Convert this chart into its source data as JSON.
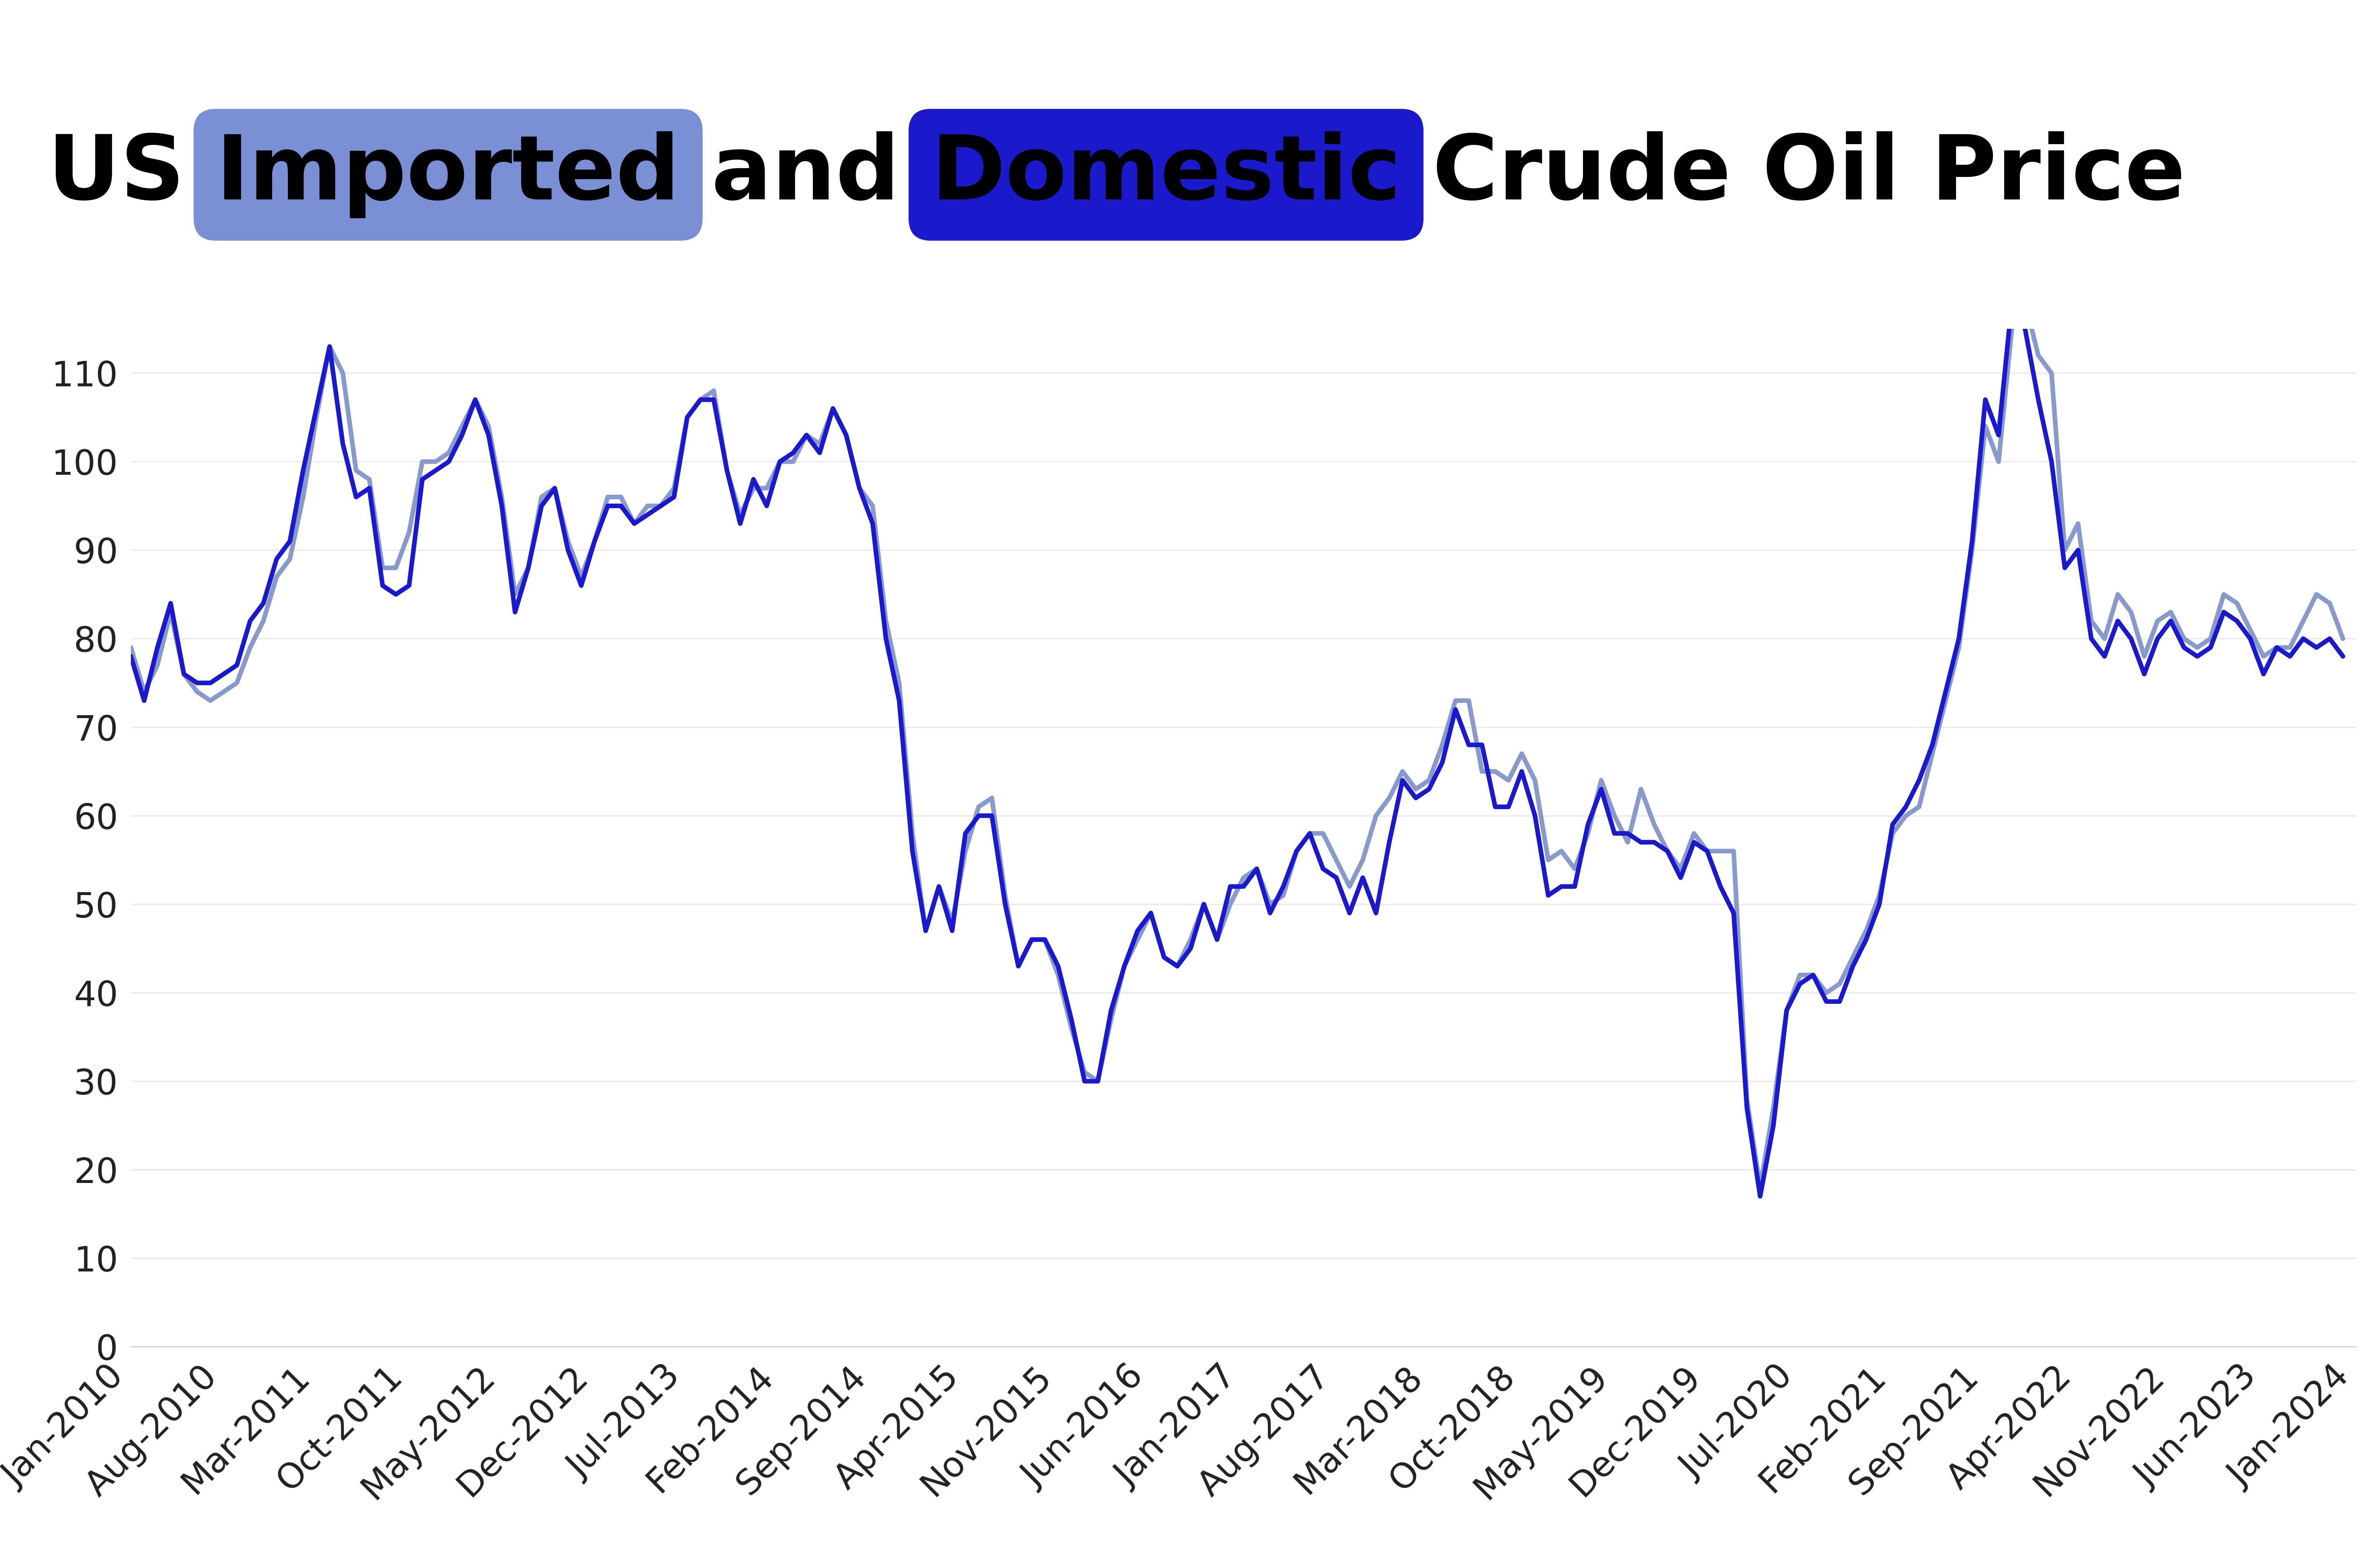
{
  "title_parts": [
    {
      "text": "US ",
      "color": "#000000",
      "bg": null,
      "bold": true
    },
    {
      "text": "Imported",
      "color": "#000000",
      "bg": "#7b8fd4",
      "bold": true
    },
    {
      "text": " and ",
      "color": "#000000",
      "bg": null,
      "bold": true
    },
    {
      "text": "Domestic",
      "color": "#000000",
      "bg": "#1a1acc",
      "bold": true
    },
    {
      "text": " Crude Oil Price",
      "color": "#000000",
      "bg": null,
      "bold": true
    }
  ],
  "imported_color": "#8899cc",
  "domestic_color": "#1a1acc",
  "line_width": 9,
  "ylim": [
    0,
    115
  ],
  "yticks": [
    0,
    10,
    20,
    30,
    40,
    50,
    60,
    70,
    80,
    90,
    100,
    110
  ],
  "background_color": "#ffffff",
  "grid_color": "#e8e8e8",
  "title_fontsize": 175,
  "tick_fontsize": 68,
  "imported_values": [
    79,
    74,
    77,
    83,
    76,
    74,
    73,
    74,
    75,
    79,
    82,
    87,
    89,
    96,
    105,
    113,
    110,
    99,
    98,
    88,
    88,
    92,
    100,
    100,
    101,
    104,
    107,
    104,
    96,
    85,
    88,
    96,
    97,
    91,
    87,
    91,
    96,
    96,
    93,
    95,
    95,
    97,
    105,
    107,
    108,
    99,
    94,
    97,
    97,
    100,
    100,
    103,
    102,
    106,
    103,
    97,
    95,
    82,
    75,
    58,
    47,
    52,
    48,
    56,
    61,
    62,
    51,
    43,
    46,
    46,
    42,
    36,
    31,
    30,
    37,
    43,
    46,
    49,
    44,
    43,
    46,
    50,
    46,
    50,
    53,
    54,
    50,
    51,
    56,
    58,
    58,
    55,
    52,
    55,
    60,
    62,
    65,
    63,
    64,
    68,
    73,
    73,
    65,
    65,
    64,
    67,
    64,
    55,
    56,
    54,
    58,
    64,
    60,
    57,
    63,
    59,
    56,
    54,
    58,
    56,
    56,
    56,
    28,
    18,
    27,
    38,
    42,
    42,
    40,
    41,
    44,
    47,
    51,
    58,
    60,
    61,
    67,
    73,
    79,
    90,
    104,
    100,
    115,
    118,
    112,
    110,
    90,
    93,
    82,
    80,
    85,
    83,
    78,
    82,
    83,
    80,
    79,
    80,
    85,
    84,
    81,
    78,
    79,
    79,
    82,
    85,
    84,
    80
  ],
  "domestic_values": [
    78,
    73,
    79,
    84,
    76,
    75,
    75,
    76,
    77,
    82,
    84,
    89,
    91,
    99,
    106,
    113,
    102,
    96,
    97,
    86,
    85,
    86,
    98,
    99,
    100,
    103,
    107,
    103,
    95,
    83,
    88,
    95,
    97,
    90,
    86,
    91,
    95,
    95,
    93,
    94,
    95,
    96,
    105,
    107,
    107,
    99,
    93,
    98,
    95,
    100,
    101,
    103,
    101,
    106,
    103,
    97,
    93,
    80,
    73,
    56,
    47,
    52,
    47,
    58,
    60,
    60,
    50,
    43,
    46,
    46,
    43,
    37,
    30,
    30,
    38,
    43,
    47,
    49,
    44,
    43,
    45,
    50,
    46,
    52,
    52,
    54,
    49,
    52,
    56,
    58,
    54,
    53,
    49,
    53,
    49,
    57,
    64,
    62,
    63,
    66,
    72,
    68,
    68,
    61,
    61,
    65,
    60,
    51,
    52,
    52,
    59,
    63,
    58,
    58,
    57,
    57,
    56,
    53,
    57,
    56,
    52,
    49,
    27,
    17,
    25,
    38,
    41,
    42,
    39,
    39,
    43,
    46,
    50,
    59,
    61,
    64,
    68,
    74,
    80,
    91,
    107,
    103,
    118,
    115,
    107,
    100,
    88,
    90,
    80,
    78,
    82,
    80,
    76,
    80,
    82,
    79,
    78,
    79,
    83,
    82,
    80,
    76,
    79,
    78,
    80,
    79,
    80,
    78
  ],
  "xtick_labels": [
    "Jan-2010",
    "Aug-2010",
    "Mar-2011",
    "Oct-2011",
    "May-2012",
    "Dec-2012",
    "Jul-2013",
    "Feb-2014",
    "Sep-2014",
    "Apr-2015",
    "Nov-2015",
    "Jun-2016",
    "Jan-2017",
    "Aug-2017",
    "Mar-2018",
    "Oct-2018",
    "May-2019",
    "Dec-2019",
    "Jul-2020",
    "Feb-2021",
    "Sep-2021",
    "Apr-2022",
    "Nov-2022",
    "Jun-2023",
    "Jan-2024"
  ],
  "xtick_positions": [
    0,
    7,
    14,
    21,
    28,
    35,
    42,
    49,
    56,
    63,
    70,
    77,
    84,
    91,
    98,
    105,
    112,
    119,
    126,
    133,
    140,
    147,
    154,
    161,
    168
  ]
}
